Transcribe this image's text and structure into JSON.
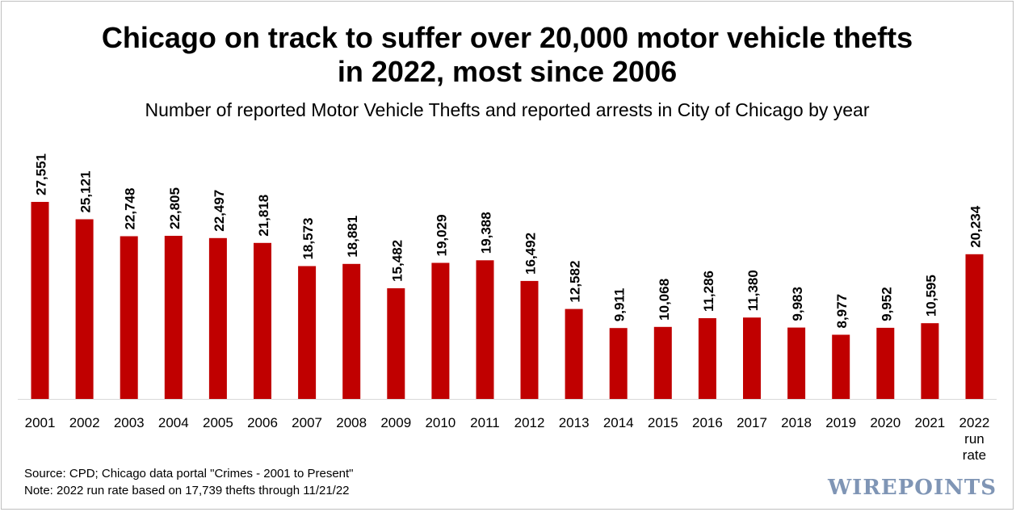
{
  "chart_data": {
    "type": "bar",
    "title": "Chicago on track to suffer over 20,000 motor vehicle thefts in 2022, most since 2006",
    "title_lines": [
      "Chicago on track to suffer over 20,000 motor vehicle thefts",
      "in 2022, most since 2006"
    ],
    "subtitle": "Number of reported Motor Vehicle Thefts and reported arrests in City of Chicago by year",
    "categories": [
      "2001",
      "2002",
      "2003",
      "2004",
      "2005",
      "2006",
      "2007",
      "2008",
      "2009",
      "2010",
      "2011",
      "2012",
      "2013",
      "2014",
      "2015",
      "2016",
      "2017",
      "2018",
      "2019",
      "2020",
      "2021",
      "2022 run rate"
    ],
    "category_lines": [
      [
        "2001"
      ],
      [
        "2002"
      ],
      [
        "2003"
      ],
      [
        "2004"
      ],
      [
        "2005"
      ],
      [
        "2006"
      ],
      [
        "2007"
      ],
      [
        "2008"
      ],
      [
        "2009"
      ],
      [
        "2010"
      ],
      [
        "2011"
      ],
      [
        "2012"
      ],
      [
        "2013"
      ],
      [
        "2014"
      ],
      [
        "2015"
      ],
      [
        "2016"
      ],
      [
        "2017"
      ],
      [
        "2018"
      ],
      [
        "2019"
      ],
      [
        "2020"
      ],
      [
        "2021"
      ],
      [
        "2022",
        "run",
        "rate"
      ]
    ],
    "values": [
      27551,
      25121,
      22748,
      22805,
      22497,
      21818,
      18573,
      18881,
      15482,
      19029,
      19388,
      16492,
      12582,
      9911,
      10068,
      11286,
      11380,
      9983,
      8977,
      9952,
      10595,
      20234
    ],
    "value_labels": [
      "27,551",
      "25,121",
      "22,748",
      "22,805",
      "22,497",
      "21,818",
      "18,573",
      "18,881",
      "15,482",
      "19,029",
      "19,388",
      "16,492",
      "12,582",
      "9,911",
      "10,068",
      "11,286",
      "11,380",
      "9,983",
      "8,977",
      "9,952",
      "10,595",
      "20,234"
    ],
    "bar_color": "#c00000",
    "ylim": [
      0,
      32000
    ],
    "grid": false,
    "legend": "none",
    "xlabel": "",
    "ylabel": ""
  },
  "footnotes": {
    "source": "Source: CPD; Chicago data portal \"Crimes - 2001 to Present\"",
    "note": "Note: 2022 run rate based on 17,739 thefts through 11/21/22"
  },
  "logo": {
    "text": "WIREPOINTS",
    "color": "#7f95b5"
  }
}
